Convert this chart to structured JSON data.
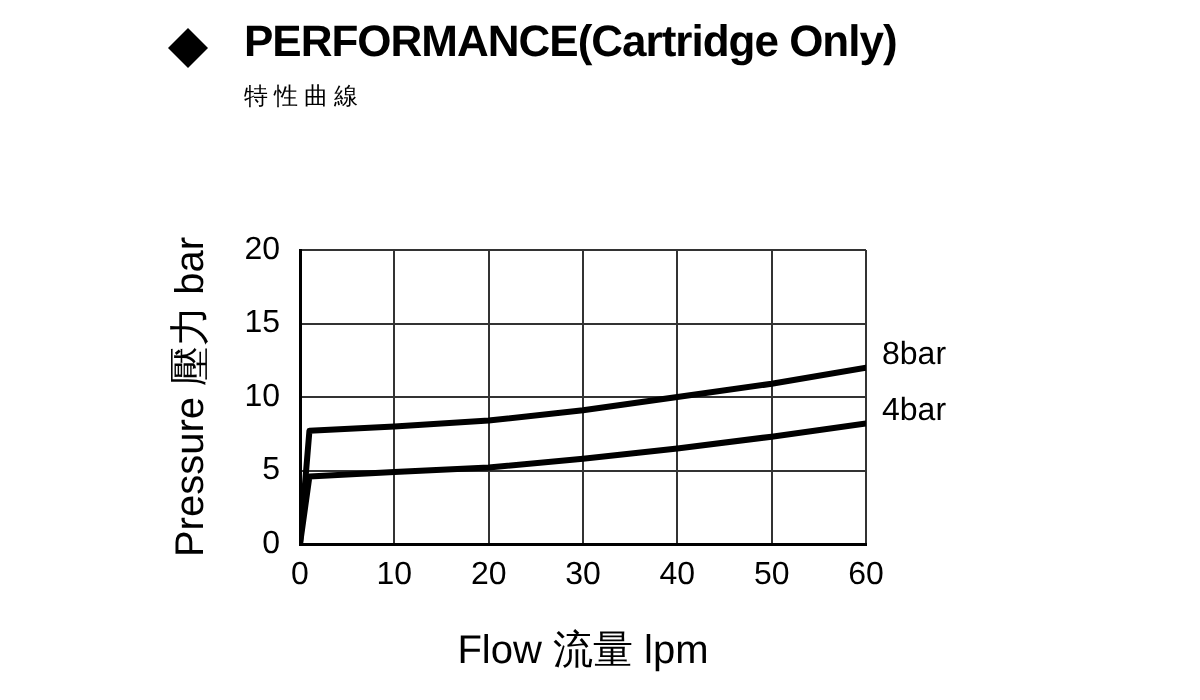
{
  "chart_data": {
    "type": "line",
    "title": "PERFORMANCE(Cartridge Only)",
    "subtitle": "特性曲線",
    "xlabel": "Flow 流量 lpm",
    "ylabel": "Pressure 壓力 bar",
    "x": [
      0,
      1,
      10,
      20,
      30,
      40,
      50,
      60
    ],
    "series": [
      {
        "name": "8bar",
        "color": "#000000",
        "values": [
          0,
          7.7,
          8.0,
          8.4,
          9.1,
          10.0,
          10.9,
          12.0
        ]
      },
      {
        "name": "4bar",
        "color": "#000000",
        "values": [
          0,
          4.6,
          4.9,
          5.2,
          5.8,
          6.5,
          7.3,
          8.2
        ]
      }
    ],
    "xlim": [
      0,
      60
    ],
    "xticks": [
      0,
      10,
      20,
      30,
      40,
      50,
      60
    ],
    "ylim": [
      0,
      20
    ],
    "yticks": [
      0,
      5,
      10,
      15,
      20
    ],
    "grid": true,
    "legend": false,
    "marker": "none",
    "line_style": "solid"
  }
}
